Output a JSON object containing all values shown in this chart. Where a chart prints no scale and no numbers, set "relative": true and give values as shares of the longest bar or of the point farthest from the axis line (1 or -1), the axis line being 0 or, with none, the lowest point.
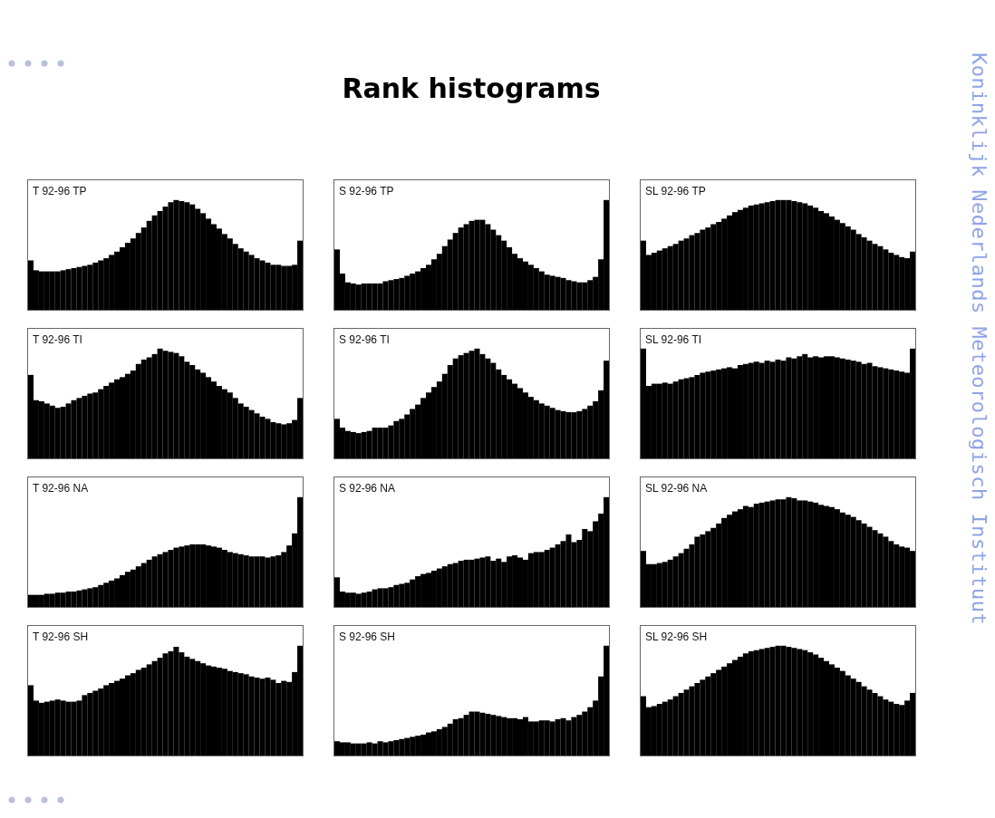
{
  "chart_data": [
    {
      "type": "bar",
      "title": "T 92-96 TP",
      "relative": true,
      "color": "#000000",
      "annotations": [
        "Rank histograms",
        "Koninklijk Nederlands Meteorologisch Instituut"
      ],
      "categories": [
        null,
        null,
        null,
        null,
        null,
        null,
        null,
        null,
        null,
        null,
        null,
        null,
        null,
        null,
        null,
        null,
        null,
        null,
        null,
        null,
        null,
        null,
        null,
        null,
        null,
        null,
        null,
        null,
        null,
        null,
        null,
        null,
        null,
        null,
        null,
        null,
        null,
        null,
        null,
        null,
        null,
        null,
        null,
        null,
        null,
        null,
        null,
        null,
        null,
        null,
        null
      ],
      "values": [
        0.45,
        0.36,
        0.35,
        0.35,
        0.35,
        0.35,
        0.36,
        0.37,
        0.38,
        0.39,
        0.4,
        0.41,
        0.43,
        0.45,
        0.47,
        0.5,
        0.53,
        0.57,
        0.61,
        0.65,
        0.7,
        0.75,
        0.81,
        0.86,
        0.9,
        0.94,
        0.98,
        1,
        0.99,
        0.98,
        0.96,
        0.92,
        0.88,
        0.83,
        0.78,
        0.74,
        0.69,
        0.65,
        0.6,
        0.56,
        0.53,
        0.5,
        0.47,
        0.45,
        0.43,
        0.41,
        0.41,
        0.4,
        0.4,
        0.41,
        0.63
      ]
    },
    {
      "type": "bar",
      "title": "S 92-96 TP",
      "relative": true,
      "color": "#000000",
      "categories": [
        null,
        null,
        null,
        null,
        null,
        null,
        null,
        null,
        null,
        null,
        null,
        null,
        null,
        null,
        null,
        null,
        null,
        null,
        null,
        null,
        null,
        null,
        null,
        null,
        null,
        null,
        null,
        null,
        null,
        null,
        null,
        null,
        null,
        null,
        null,
        null,
        null,
        null,
        null,
        null,
        null,
        null,
        null,
        null,
        null,
        null,
        null,
        null,
        null,
        null,
        null
      ],
      "values": [
        0.55,
        0.33,
        0.25,
        0.24,
        0.23,
        0.24,
        0.24,
        0.24,
        0.24,
        0.26,
        0.27,
        0.28,
        0.29,
        0.31,
        0.33,
        0.35,
        0.38,
        0.41,
        0.46,
        0.51,
        0.58,
        0.64,
        0.7,
        0.75,
        0.78,
        0.81,
        0.82,
        0.82,
        0.78,
        0.73,
        0.68,
        0.63,
        0.57,
        0.51,
        0.47,
        0.44,
        0.41,
        0.38,
        0.35,
        0.32,
        0.31,
        0.3,
        0.29,
        0.27,
        0.26,
        0.25,
        0.25,
        0.27,
        0.3,
        0.46,
        1
      ]
    },
    {
      "type": "bar",
      "title": "SL 92-96 TP",
      "relative": true,
      "color": "#000000",
      "categories": [
        null,
        null,
        null,
        null,
        null,
        null,
        null,
        null,
        null,
        null,
        null,
        null,
        null,
        null,
        null,
        null,
        null,
        null,
        null,
        null,
        null,
        null,
        null,
        null,
        null,
        null,
        null,
        null,
        null,
        null,
        null,
        null,
        null,
        null,
        null,
        null,
        null,
        null,
        null,
        null,
        null,
        null,
        null,
        null,
        null,
        null,
        null,
        null,
        null,
        null,
        null
      ],
      "values": [
        0.63,
        0.5,
        0.52,
        0.54,
        0.56,
        0.58,
        0.6,
        0.63,
        0.65,
        0.68,
        0.7,
        0.73,
        0.75,
        0.78,
        0.8,
        0.83,
        0.86,
        0.89,
        0.91,
        0.93,
        0.95,
        0.96,
        0.97,
        0.98,
        0.99,
        1,
        1,
        1,
        0.99,
        0.98,
        0.97,
        0.95,
        0.93,
        0.9,
        0.88,
        0.85,
        0.82,
        0.79,
        0.76,
        0.73,
        0.69,
        0.66,
        0.63,
        0.6,
        0.58,
        0.55,
        0.52,
        0.5,
        0.48,
        0.47,
        0.53
      ]
    },
    {
      "type": "bar",
      "title": "T 92-96 TI",
      "relative": true,
      "color": "#000000",
      "categories": [
        null,
        null,
        null,
        null,
        null,
        null,
        null,
        null,
        null,
        null,
        null,
        null,
        null,
        null,
        null,
        null,
        null,
        null,
        null,
        null,
        null,
        null,
        null,
        null,
        null,
        null,
        null,
        null,
        null,
        null,
        null,
        null,
        null,
        null,
        null,
        null,
        null,
        null,
        null,
        null,
        null,
        null,
        null,
        null,
        null,
        null,
        null,
        null,
        null,
        null,
        null
      ],
      "values": [
        0.76,
        0.53,
        0.52,
        0.5,
        0.48,
        0.46,
        0.47,
        0.5,
        0.53,
        0.55,
        0.57,
        0.59,
        0.6,
        0.63,
        0.66,
        0.69,
        0.72,
        0.74,
        0.77,
        0.8,
        0.86,
        0.9,
        0.92,
        0.95,
        1,
        0.98,
        0.97,
        0.96,
        0.93,
        0.88,
        0.85,
        0.81,
        0.78,
        0.74,
        0.7,
        0.66,
        0.63,
        0.6,
        0.55,
        0.5,
        0.47,
        0.44,
        0.41,
        0.38,
        0.36,
        0.33,
        0.32,
        0.31,
        0.32,
        0.35,
        0.55
      ]
    },
    {
      "type": "bar",
      "title": "S 92-96 TI",
      "relative": true,
      "color": "#000000",
      "categories": [
        null,
        null,
        null,
        null,
        null,
        null,
        null,
        null,
        null,
        null,
        null,
        null,
        null,
        null,
        null,
        null,
        null,
        null,
        null,
        null,
        null,
        null,
        null,
        null,
        null,
        null,
        null,
        null,
        null,
        null,
        null,
        null,
        null,
        null,
        null,
        null,
        null,
        null,
        null,
        null,
        null,
        null,
        null,
        null,
        null,
        null,
        null,
        null,
        null,
        null,
        null
      ],
      "values": [
        0.36,
        0.28,
        0.25,
        0.24,
        0.23,
        0.24,
        0.25,
        0.28,
        0.28,
        0.28,
        0.3,
        0.34,
        0.36,
        0.4,
        0.45,
        0.49,
        0.55,
        0.6,
        0.65,
        0.7,
        0.77,
        0.85,
        0.91,
        0.94,
        0.96,
        0.98,
        1,
        0.95,
        0.91,
        0.87,
        0.81,
        0.76,
        0.72,
        0.68,
        0.64,
        0.6,
        0.56,
        0.53,
        0.5,
        0.48,
        0.46,
        0.44,
        0.43,
        0.42,
        0.42,
        0.43,
        0.45,
        0.48,
        0.52,
        0.62,
        0.89
      ]
    },
    {
      "type": "bar",
      "title": "SL 92-96 TI",
      "relative": true,
      "color": "#000000",
      "categories": [
        null,
        null,
        null,
        null,
        null,
        null,
        null,
        null,
        null,
        null,
        null,
        null,
        null,
        null,
        null,
        null,
        null,
        null,
        null,
        null,
        null,
        null,
        null,
        null,
        null,
        null,
        null,
        null,
        null,
        null,
        null,
        null,
        null,
        null,
        null,
        null,
        null,
        null,
        null,
        null,
        null,
        null,
        null,
        null,
        null,
        null,
        null,
        null,
        null,
        null,
        null
      ],
      "values": [
        1,
        0.66,
        0.68,
        0.68,
        0.69,
        0.68,
        0.7,
        0.72,
        0.73,
        0.74,
        0.76,
        0.78,
        0.79,
        0.8,
        0.81,
        0.82,
        0.83,
        0.82,
        0.85,
        0.86,
        0.87,
        0.88,
        0.87,
        0.89,
        0.88,
        0.9,
        0.89,
        0.92,
        0.91,
        0.93,
        0.95,
        0.92,
        0.93,
        0.92,
        0.93,
        0.93,
        0.92,
        0.91,
        0.9,
        0.89,
        0.88,
        0.86,
        0.87,
        0.84,
        0.83,
        0.82,
        0.81,
        0.8,
        0.79,
        0.78,
        1
      ]
    },
    {
      "type": "bar",
      "title": "T 92-96 NA",
      "relative": true,
      "color": "#000000",
      "categories": [
        null,
        null,
        null,
        null,
        null,
        null,
        null,
        null,
        null,
        null,
        null,
        null,
        null,
        null,
        null,
        null,
        null,
        null,
        null,
        null,
        null,
        null,
        null,
        null,
        null,
        null,
        null,
        null,
        null,
        null,
        null,
        null,
        null,
        null,
        null,
        null,
        null,
        null,
        null,
        null,
        null,
        null,
        null,
        null,
        null,
        null,
        null,
        null,
        null,
        null,
        null
      ],
      "values": [
        0.11,
        0.11,
        0.11,
        0.12,
        0.12,
        0.13,
        0.13,
        0.14,
        0.14,
        0.15,
        0.16,
        0.17,
        0.18,
        0.2,
        0.22,
        0.24,
        0.26,
        0.29,
        0.32,
        0.34,
        0.37,
        0.4,
        0.43,
        0.46,
        0.48,
        0.5,
        0.52,
        0.54,
        0.55,
        0.56,
        0.57,
        0.57,
        0.57,
        0.56,
        0.55,
        0.54,
        0.52,
        0.5,
        0.49,
        0.48,
        0.47,
        0.46,
        0.46,
        0.46,
        0.45,
        0.46,
        0.47,
        0.5,
        0.56,
        0.67,
        1
      ]
    },
    {
      "type": "bar",
      "title": "S 92-96 NA",
      "relative": true,
      "color": "#000000",
      "categories": [
        null,
        null,
        null,
        null,
        null,
        null,
        null,
        null,
        null,
        null,
        null,
        null,
        null,
        null,
        null,
        null,
        null,
        null,
        null,
        null,
        null,
        null,
        null,
        null,
        null,
        null,
        null,
        null,
        null,
        null,
        null,
        null,
        null,
        null,
        null,
        null,
        null,
        null,
        null,
        null,
        null,
        null,
        null,
        null,
        null,
        null,
        null,
        null,
        null,
        null,
        null
      ],
      "values": [
        0.27,
        0.14,
        0.13,
        0.13,
        0.12,
        0.13,
        0.14,
        0.16,
        0.17,
        0.17,
        0.18,
        0.2,
        0.21,
        0.22,
        0.25,
        0.28,
        0.3,
        0.31,
        0.33,
        0.35,
        0.37,
        0.39,
        0.4,
        0.42,
        0.43,
        0.43,
        0.44,
        0.45,
        0.46,
        0.42,
        0.44,
        0.41,
        0.46,
        0.47,
        0.45,
        0.43,
        0.49,
        0.5,
        0.5,
        0.52,
        0.54,
        0.57,
        0.6,
        0.66,
        0.59,
        0.61,
        0.71,
        0.69,
        0.78,
        0.85,
        1
      ]
    },
    {
      "type": "bar",
      "title": "SL 92-96 NA",
      "relative": true,
      "color": "#000000",
      "categories": [
        null,
        null,
        null,
        null,
        null,
        null,
        null,
        null,
        null,
        null,
        null,
        null,
        null,
        null,
        null,
        null,
        null,
        null,
        null,
        null,
        null,
        null,
        null,
        null,
        null,
        null,
        null,
        null,
        null,
        null,
        null,
        null,
        null,
        null,
        null,
        null,
        null,
        null,
        null,
        null,
        null,
        null,
        null,
        null,
        null,
        null,
        null,
        null,
        null,
        null,
        null
      ],
      "values": [
        0.51,
        0.39,
        0.39,
        0.4,
        0.41,
        0.43,
        0.46,
        0.49,
        0.53,
        0.57,
        0.64,
        0.66,
        0.69,
        0.72,
        0.76,
        0.81,
        0.84,
        0.87,
        0.89,
        0.92,
        0.91,
        0.94,
        0.95,
        0.96,
        0.97,
        0.98,
        0.98,
        1,
        0.99,
        0.97,
        0.97,
        0.96,
        0.95,
        0.93,
        0.92,
        0.91,
        0.89,
        0.86,
        0.84,
        0.82,
        0.79,
        0.76,
        0.73,
        0.7,
        0.67,
        0.64,
        0.6,
        0.57,
        0.55,
        0.54,
        0.51
      ]
    },
    {
      "type": "bar",
      "title": "T 92-96 SH",
      "relative": true,
      "color": "#000000",
      "categories": [
        null,
        null,
        null,
        null,
        null,
        null,
        null,
        null,
        null,
        null,
        null,
        null,
        null,
        null,
        null,
        null,
        null,
        null,
        null,
        null,
        null,
        null,
        null,
        null,
        null,
        null,
        null,
        null,
        null,
        null,
        null,
        null,
        null,
        null,
        null,
        null,
        null,
        null,
        null,
        null,
        null,
        null,
        null,
        null,
        null,
        null,
        null,
        null,
        null,
        null,
        null
      ],
      "values": [
        0.64,
        0.5,
        0.48,
        0.49,
        0.5,
        0.51,
        0.5,
        0.49,
        0.49,
        0.5,
        0.55,
        0.57,
        0.59,
        0.61,
        0.64,
        0.66,
        0.68,
        0.7,
        0.73,
        0.75,
        0.78,
        0.8,
        0.83,
        0.86,
        0.89,
        0.93,
        0.95,
        0.99,
        0.94,
        0.9,
        0.88,
        0.86,
        0.84,
        0.82,
        0.81,
        0.8,
        0.79,
        0.77,
        0.76,
        0.75,
        0.74,
        0.72,
        0.71,
        0.7,
        0.71,
        0.69,
        0.66,
        0.68,
        0.67,
        0.76,
        1
      ]
    },
    {
      "type": "bar",
      "title": "S 92-96 SH",
      "relative": true,
      "color": "#000000",
      "categories": [
        null,
        null,
        null,
        null,
        null,
        null,
        null,
        null,
        null,
        null,
        null,
        null,
        null,
        null,
        null,
        null,
        null,
        null,
        null,
        null,
        null,
        null,
        null,
        null,
        null,
        null,
        null,
        null,
        null,
        null,
        null,
        null,
        null,
        null,
        null,
        null,
        null,
        null,
        null,
        null,
        null,
        null,
        null,
        null,
        null,
        null,
        null,
        null,
        null,
        null,
        null
      ],
      "values": [
        0.13,
        0.12,
        0.12,
        0.11,
        0.11,
        0.11,
        0.12,
        0.11,
        0.13,
        0.12,
        0.13,
        0.14,
        0.15,
        0.16,
        0.17,
        0.18,
        0.19,
        0.21,
        0.22,
        0.24,
        0.26,
        0.29,
        0.33,
        0.34,
        0.37,
        0.4,
        0.4,
        0.39,
        0.38,
        0.37,
        0.36,
        0.35,
        0.34,
        0.34,
        0.33,
        0.35,
        0.31,
        0.31,
        0.32,
        0.32,
        0.31,
        0.33,
        0.34,
        0.32,
        0.35,
        0.37,
        0.4,
        0.44,
        0.5,
        0.72,
        1
      ]
    },
    {
      "type": "bar",
      "title": "SL 92-96 SH",
      "relative": true,
      "color": "#000000",
      "categories": [
        null,
        null,
        null,
        null,
        null,
        null,
        null,
        null,
        null,
        null,
        null,
        null,
        null,
        null,
        null,
        null,
        null,
        null,
        null,
        null,
        null,
        null,
        null,
        null,
        null,
        null,
        null,
        null,
        null,
        null,
        null,
        null,
        null,
        null,
        null,
        null,
        null,
        null,
        null,
        null,
        null,
        null,
        null,
        null,
        null,
        null,
        null,
        null,
        null,
        null,
        null
      ],
      "values": [
        0.54,
        0.44,
        0.45,
        0.47,
        0.49,
        0.51,
        0.54,
        0.57,
        0.6,
        0.63,
        0.66,
        0.69,
        0.72,
        0.75,
        0.78,
        0.81,
        0.84,
        0.87,
        0.9,
        0.93,
        0.95,
        0.96,
        0.97,
        0.98,
        0.99,
        1,
        1,
        0.99,
        0.98,
        0.97,
        0.96,
        0.94,
        0.92,
        0.89,
        0.86,
        0.83,
        0.8,
        0.77,
        0.73,
        0.7,
        0.67,
        0.63,
        0.6,
        0.57,
        0.54,
        0.51,
        0.49,
        0.47,
        0.46,
        0.5,
        0.57
      ]
    }
  ]
}
